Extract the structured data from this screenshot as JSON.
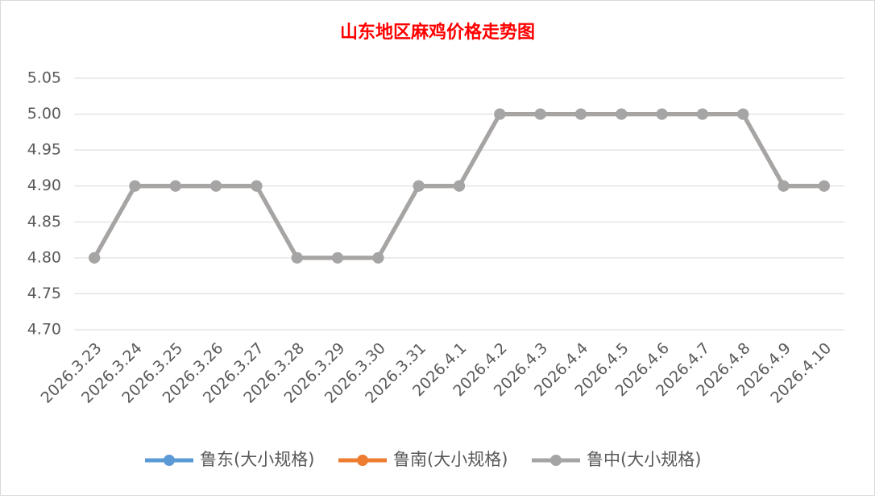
{
  "chart_data": {
    "type": "line",
    "title": "山东地区麻鸡价格走势图",
    "categories": [
      "2026.3.23",
      "2026.3.24",
      "2026.3.25",
      "2026.3.26",
      "2026.3.27",
      "2026.3.28",
      "2026.3.29",
      "2026.3.30",
      "2026.3.31",
      "2026.4.1",
      "2026.4.2",
      "2026.4.3",
      "2026.4.4",
      "2026.4.5",
      "2026.4.6",
      "2026.4.7",
      "2026.4.8",
      "2026.4.9",
      "2026.4.10"
    ],
    "series": [
      {
        "name": "鲁东(大小规格)",
        "color": "#5b9bd5",
        "values": [
          4.8,
          4.9,
          4.9,
          4.9,
          4.9,
          4.8,
          4.8,
          4.8,
          4.9,
          4.9,
          5,
          5,
          5,
          5,
          5,
          5,
          5,
          4.9,
          4.9
        ]
      },
      {
        "name": "鲁南(大小规格)",
        "color": "#ed7d31",
        "values": [
          4.8,
          4.9,
          4.9,
          4.9,
          4.9,
          4.8,
          4.8,
          4.8,
          4.9,
          4.9,
          5,
          5,
          5,
          5,
          5,
          5,
          5,
          4.9,
          4.9
        ]
      },
      {
        "name": "鲁中(大小规格)",
        "color": "#a5a5a5",
        "values": [
          4.8,
          4.9,
          4.9,
          4.9,
          4.9,
          4.8,
          4.8,
          4.8,
          4.9,
          4.9,
          5,
          5,
          5,
          5,
          5,
          5,
          5,
          4.9,
          4.9
        ]
      }
    ],
    "ylim": [
      4.7,
      5.05
    ],
    "yticks": [
      {
        "value": 4.7,
        "label": "4.70"
      },
      4.75,
      {
        "value": 4.8,
        "label": "4.80"
      },
      4.85,
      {
        "value": 4.9,
        "label": "4.90"
      },
      4.95,
      {
        "value": 5,
        "label": "5.00"
      },
      5.05
    ],
    "grid": true,
    "legend": "bottom"
  }
}
